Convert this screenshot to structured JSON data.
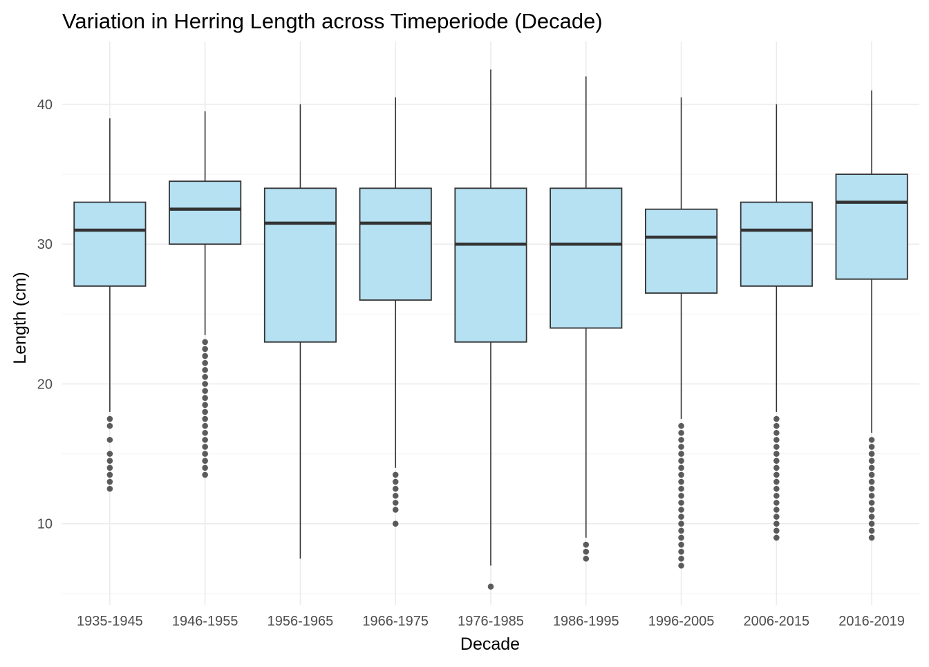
{
  "chart_data": {
    "type": "boxplot",
    "title": "Variation in Herring Length across Timeperiode (Decade)",
    "xlabel": "Decade",
    "ylabel": "Length (cm)",
    "ylim": [
      4.2,
      44.5
    ],
    "yticks": [
      10,
      20,
      30,
      40
    ],
    "grid": true,
    "colors": {
      "box_fill": "#b5e1f3",
      "box_stroke": "#333333",
      "median": "#333333",
      "outlier": "#333333",
      "grid_major": "#ebebeb",
      "grid_minor": "#f5f5f5"
    },
    "categories": [
      "1935-1945",
      "1946-1955",
      "1956-1965",
      "1966-1975",
      "1976-1985",
      "1986-1995",
      "1996-2005",
      "2006-2015",
      "2016-2019"
    ],
    "boxes": [
      {
        "category": "1935-1945",
        "whisker_low": 18,
        "q1": 27,
        "median": 31,
        "q3": 33,
        "whisker_high": 39,
        "outliers": [
          17.5,
          17,
          16,
          15,
          14.5,
          14,
          13.5,
          13,
          12.5
        ]
      },
      {
        "category": "1946-1955",
        "whisker_low": 23.5,
        "q1": 30,
        "median": 32.5,
        "q3": 34.5,
        "whisker_high": 39.5,
        "outliers": [
          23,
          22.5,
          22,
          21.5,
          21,
          20.5,
          20,
          19.5,
          19,
          18.5,
          18,
          17.5,
          17,
          16.5,
          16,
          15.5,
          15,
          14.5,
          14,
          13.5
        ]
      },
      {
        "category": "1956-1965",
        "whisker_low": 7.5,
        "q1": 23,
        "median": 31.5,
        "q3": 34,
        "whisker_high": 40,
        "outliers": []
      },
      {
        "category": "1966-1975",
        "whisker_low": 14,
        "q1": 26,
        "median": 31.5,
        "q3": 34,
        "whisker_high": 40.5,
        "outliers": [
          13.5,
          13,
          12.5,
          12,
          11.5,
          11,
          10
        ]
      },
      {
        "category": "1976-1985",
        "whisker_low": 7,
        "q1": 23,
        "median": 30,
        "q3": 34,
        "whisker_high": 42.5,
        "outliers": [
          5.5
        ]
      },
      {
        "category": "1986-1995",
        "whisker_low": 9,
        "q1": 24,
        "median": 30,
        "q3": 34,
        "whisker_high": 42,
        "outliers": [
          8.5,
          8,
          7.5
        ]
      },
      {
        "category": "1996-2005",
        "whisker_low": 17.5,
        "q1": 26.5,
        "median": 30.5,
        "q3": 32.5,
        "whisker_high": 40.5,
        "outliers": [
          17,
          16.5,
          16,
          15.5,
          15,
          14.5,
          14,
          13.5,
          13,
          12.5,
          12,
          11.5,
          11,
          10.5,
          10,
          9.5,
          9,
          8.5,
          8,
          7.5,
          7
        ]
      },
      {
        "category": "2006-2015",
        "whisker_low": 18,
        "q1": 27,
        "median": 31,
        "q3": 33,
        "whisker_high": 40,
        "outliers": [
          17.5,
          17,
          16.5,
          16,
          15.5,
          15,
          14.5,
          14,
          13.5,
          13,
          12.5,
          12,
          11.5,
          11,
          10.5,
          10,
          9.5,
          9
        ]
      },
      {
        "category": "2016-2019",
        "whisker_low": 16.5,
        "q1": 27.5,
        "median": 33,
        "q3": 35,
        "whisker_high": 41,
        "outliers": [
          16,
          15.5,
          15,
          14.5,
          14,
          13.5,
          13,
          12.5,
          12,
          11.5,
          11,
          10.5,
          10,
          9.5,
          9
        ]
      }
    ]
  }
}
